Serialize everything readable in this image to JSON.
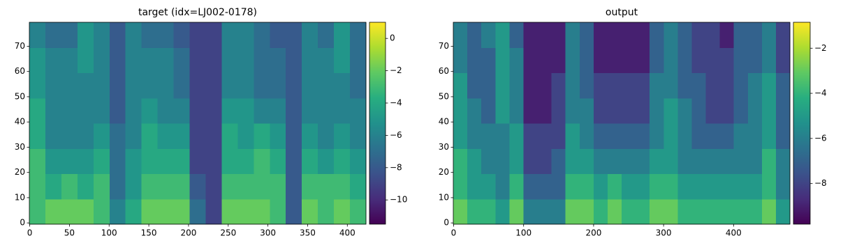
{
  "chart_data": [
    {
      "type": "heatmap",
      "title": "target (idx=LJ002-0178)",
      "colormap": "viridis",
      "xlim": [
        -0.5,
        423.5
      ],
      "ylim": [
        -0.5,
        79.5
      ],
      "xticks": [
        0,
        50,
        100,
        150,
        200,
        250,
        300,
        350,
        400
      ],
      "yticks": [
        0,
        10,
        20,
        30,
        40,
        50,
        60,
        70
      ],
      "z": [
        [
          -3,
          -2,
          -2,
          -2,
          -3,
          -6,
          -4,
          -2,
          -2,
          -2,
          -7,
          -9,
          -2,
          -2,
          -2,
          -3,
          -8,
          -2,
          -3,
          -2,
          -3
        ],
        [
          -3,
          -4,
          -3,
          -4,
          -3,
          -7,
          -5,
          -3,
          -3,
          -3,
          -8,
          -9,
          -3,
          -3,
          -3,
          -3,
          -8,
          -3,
          -3,
          -3,
          -4
        ],
        [
          -3,
          -5,
          -5,
          -5,
          -4,
          -7,
          -5,
          -4,
          -4,
          -4,
          -9,
          -9,
          -4,
          -4,
          -3,
          -4,
          -8,
          -4,
          -5,
          -4,
          -5
        ],
        [
          -4,
          -6,
          -6,
          -6,
          -5,
          -7,
          -6,
          -4,
          -5,
          -5,
          -9,
          -9,
          -4,
          -5,
          -4,
          -5,
          -8,
          -5,
          -6,
          -5,
          -6
        ],
        [
          -4,
          -6,
          -6,
          -6,
          -6,
          -8,
          -6,
          -5,
          -6,
          -6,
          -9,
          -9,
          -5,
          -5,
          -6,
          -6,
          -8,
          -6,
          -6,
          -6,
          -6
        ],
        [
          -5,
          -6,
          -6,
          -6,
          -6,
          -8,
          -6,
          -6,
          -6,
          -7,
          -9,
          -9,
          -6,
          -6,
          -7,
          -7,
          -8,
          -6,
          -6,
          -6,
          -7
        ],
        [
          -5,
          -6,
          -6,
          -5,
          -6,
          -8,
          -6,
          -6,
          -6,
          -7,
          -9,
          -9,
          -6,
          -6,
          -7,
          -7,
          -8,
          -6,
          -6,
          -5,
          -7
        ],
        [
          -6,
          -7,
          -7,
          -5,
          -6,
          -8,
          -6,
          -7,
          -7,
          -8,
          -9,
          -9,
          -6,
          -6,
          -7,
          -8,
          -8,
          -6,
          -7,
          -5,
          -7
        ]
      ],
      "clim": [
        -11.5,
        1.0
      ],
      "cticks": [
        {
          "value": -10,
          "label": "−10"
        },
        {
          "value": -8,
          "label": "−8"
        },
        {
          "value": -6,
          "label": "−6"
        },
        {
          "value": -4,
          "label": "−4"
        },
        {
          "value": -2,
          "label": "−2"
        },
        0
      ]
    },
    {
      "type": "heatmap",
      "title": "output",
      "colormap": "viridis",
      "xlim": [
        -0.5,
        480.5
      ],
      "ylim": [
        -0.5,
        79.5
      ],
      "xticks": [
        0,
        100,
        200,
        300,
        400
      ],
      "yticks": [
        0,
        10,
        20,
        30,
        40,
        50,
        60,
        70
      ],
      "z": [
        [
          -3,
          -4,
          -4,
          -5,
          -3,
          -6,
          -6,
          -6,
          -3,
          -3,
          -4,
          -3,
          -4,
          -4,
          -3,
          -3,
          -4,
          -4,
          -4,
          -4,
          -4,
          -4,
          -3,
          -5
        ],
        [
          -4,
          -5,
          -5,
          -6,
          -4,
          -7,
          -7,
          -7,
          -4,
          -4,
          -5,
          -4,
          -5,
          -5,
          -4,
          -4,
          -5,
          -5,
          -5,
          -5,
          -5,
          -5,
          -4,
          -6
        ],
        [
          -4,
          -5,
          -6,
          -6,
          -5,
          -8,
          -8,
          -7,
          -5,
          -5,
          -6,
          -6,
          -6,
          -6,
          -5,
          -5,
          -6,
          -6,
          -6,
          -6,
          -6,
          -6,
          -4,
          -6
        ],
        [
          -5,
          -6,
          -6,
          -6,
          -5,
          -8,
          -8,
          -8,
          -5,
          -6,
          -7,
          -7,
          -7,
          -7,
          -6,
          -5,
          -6,
          -7,
          -7,
          -7,
          -6,
          -6,
          -5,
          -7
        ],
        [
          -5,
          -6,
          -7,
          -5,
          -6,
          -9,
          -9,
          -8,
          -6,
          -6,
          -8,
          -8,
          -8,
          -8,
          -6,
          -5,
          -6,
          -7,
          -8,
          -8,
          -7,
          -6,
          -5,
          -7
        ],
        [
          -5,
          -7,
          -7,
          -5,
          -6,
          -9,
          -9,
          -8,
          -6,
          -7,
          -8,
          -8,
          -8,
          -8,
          -6,
          -6,
          -7,
          -7,
          -8,
          -8,
          -7,
          -6,
          -5,
          -7
        ],
        [
          -6,
          -7,
          -7,
          -5,
          -6,
          -9,
          -9,
          -9,
          -6,
          -7,
          -9,
          -9,
          -9,
          -9,
          -7,
          -6,
          -7,
          -8,
          -8,
          -8,
          -7,
          -7,
          -6,
          -8
        ],
        [
          -6,
          -7,
          -6,
          -5,
          -7,
          -9,
          -9,
          -9,
          -6,
          -7,
          -9,
          -9,
          -9,
          -9,
          -7,
          -6,
          -7,
          -8,
          -8,
          -9,
          -7,
          -7,
          -6,
          -8
        ]
      ],
      "clim": [
        -9.8,
        -0.85
      ],
      "cticks": [
        {
          "value": -8,
          "label": "−8"
        },
        {
          "value": -6,
          "label": "−6"
        },
        {
          "value": -4,
          "label": "−4"
        },
        {
          "value": -2,
          "label": "−2"
        }
      ]
    }
  ]
}
